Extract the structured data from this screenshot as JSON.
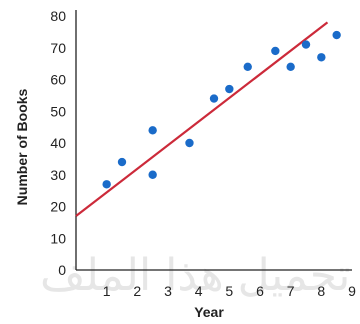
{
  "watermark_text": "تحميل هذا الملف",
  "chart_data": {
    "type": "scatter",
    "title": "",
    "xlabel": "Year",
    "ylabel": "Number of Books",
    "xlim": [
      0,
      9
    ],
    "ylim": [
      0,
      80
    ],
    "x_ticks": [
      1,
      2,
      3,
      4,
      5,
      6,
      7,
      8,
      9
    ],
    "y_ticks": [
      0,
      10,
      20,
      30,
      40,
      50,
      60,
      70,
      80
    ],
    "grid": false,
    "legend": "none",
    "point_color": "#1a6bc9",
    "trend_color": "#cc2a3a",
    "points": [
      {
        "x": 1.0,
        "y": 27
      },
      {
        "x": 1.5,
        "y": 34
      },
      {
        "x": 2.5,
        "y": 30
      },
      {
        "x": 2.5,
        "y": 44
      },
      {
        "x": 3.7,
        "y": 40
      },
      {
        "x": 4.5,
        "y": 54
      },
      {
        "x": 5.0,
        "y": 57
      },
      {
        "x": 5.6,
        "y": 64
      },
      {
        "x": 6.5,
        "y": 69
      },
      {
        "x": 7.0,
        "y": 64
      },
      {
        "x": 7.5,
        "y": 71
      },
      {
        "x": 8.0,
        "y": 67
      },
      {
        "x": 8.5,
        "y": 74
      }
    ],
    "trend_line": {
      "x": [
        0,
        8.2
      ],
      "y": [
        17,
        78
      ]
    }
  }
}
